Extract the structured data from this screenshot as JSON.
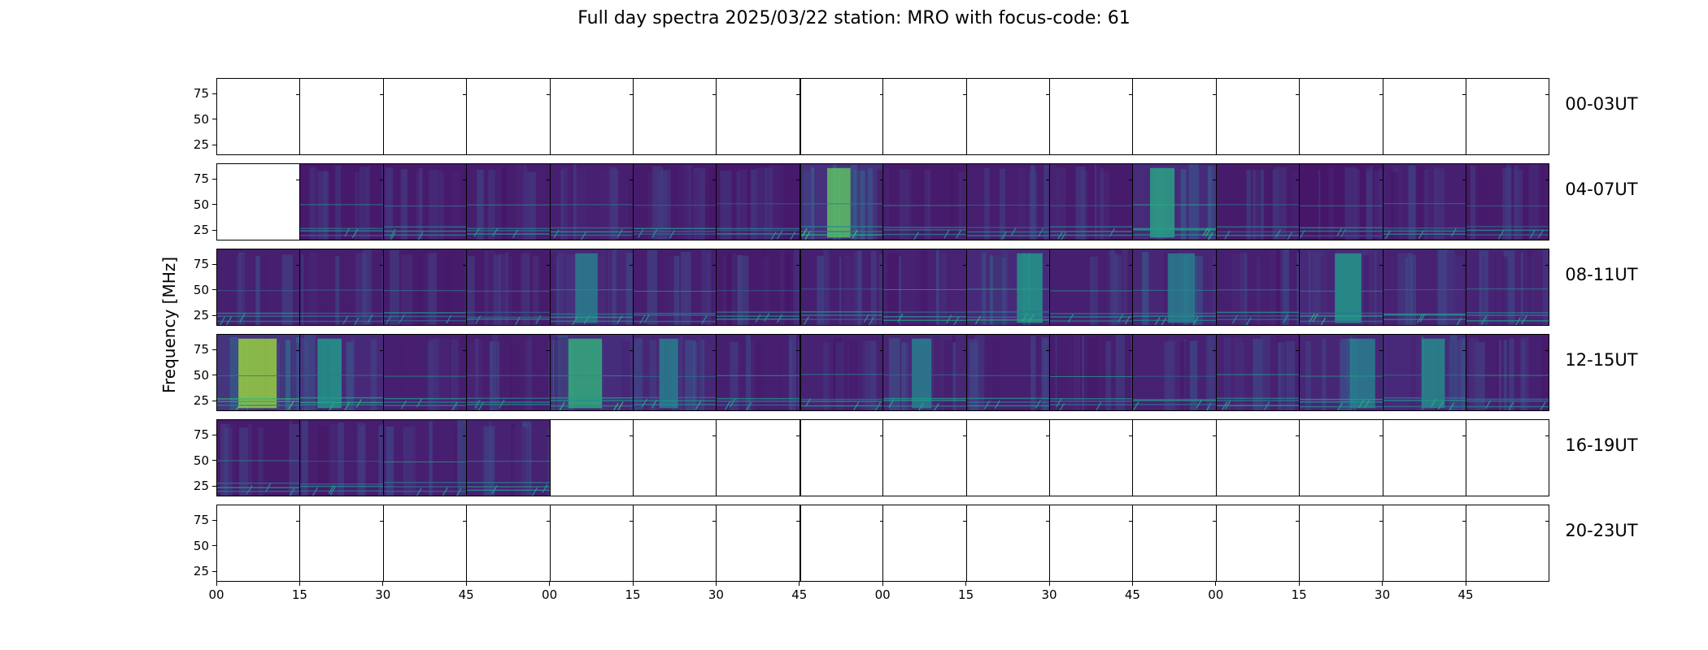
{
  "chart_data": {
    "type": "heatmap",
    "title": "Full day spectra 2025/03/22 station: MRO with focus-code: 61",
    "ylabel": "Frequency [MHz]",
    "xlabel": "",
    "ytick_labels": [
      "75",
      "50",
      "25"
    ],
    "yticks": [
      75,
      50,
      25
    ],
    "ylim": [
      15,
      90
    ],
    "xtick_labels": [
      "00",
      "15",
      "30",
      "45",
      "00",
      "15",
      "30",
      "45",
      "00",
      "15",
      "30",
      "45",
      "00",
      "15",
      "30",
      "45"
    ],
    "colormap": "viridis",
    "rows": [
      {
        "label": "00-03UT",
        "filled": [
          false,
          false,
          false,
          false,
          false,
          false,
          false,
          false,
          false,
          false,
          false,
          false,
          false,
          false,
          false,
          false
        ],
        "bright": [
          0,
          0,
          0,
          0,
          0,
          0,
          0,
          0,
          0,
          0,
          0,
          0,
          0,
          0,
          0,
          0
        ]
      },
      {
        "label": "04-07UT",
        "filled": [
          false,
          true,
          true,
          true,
          true,
          true,
          true,
          true,
          true,
          true,
          true,
          true,
          true,
          true,
          true,
          true
        ],
        "bright": [
          0,
          0.15,
          0.2,
          0.25,
          0.3,
          0.2,
          0.15,
          0.75,
          0.2,
          0.25,
          0.2,
          0.6,
          0.2,
          0.1,
          0.3,
          0.2
        ]
      },
      {
        "label": "08-11UT",
        "filled": [
          true,
          true,
          true,
          true,
          true,
          true,
          true,
          true,
          true,
          true,
          true,
          true,
          true,
          true,
          true,
          true
        ],
        "bright": [
          0.3,
          0.25,
          0.2,
          0.2,
          0.45,
          0.25,
          0.2,
          0.3,
          0.35,
          0.55,
          0.3,
          0.45,
          0.3,
          0.55,
          0.35,
          0.4
        ]
      },
      {
        "label": "12-15UT",
        "filled": [
          true,
          true,
          true,
          true,
          true,
          true,
          true,
          true,
          true,
          true,
          true,
          true,
          true,
          true,
          true,
          true
        ],
        "bright": [
          0.85,
          0.55,
          0.3,
          0.25,
          0.65,
          0.45,
          0.3,
          0.35,
          0.45,
          0.3,
          0.25,
          0.35,
          0.35,
          0.45,
          0.5,
          0.3
        ]
      },
      {
        "label": "16-19UT",
        "filled": [
          true,
          true,
          true,
          true,
          false,
          false,
          false,
          false,
          false,
          false,
          false,
          false,
          false,
          false,
          false,
          false
        ],
        "bright": [
          0.2,
          0.25,
          0.3,
          0.35,
          0,
          0,
          0,
          0,
          0,
          0,
          0,
          0,
          0,
          0,
          0,
          0
        ]
      },
      {
        "label": "20-23UT",
        "filled": [
          false,
          false,
          false,
          false,
          false,
          false,
          false,
          false,
          false,
          false,
          false,
          false,
          false,
          false,
          false,
          false
        ],
        "bright": [
          0,
          0,
          0,
          0,
          0,
          0,
          0,
          0,
          0,
          0,
          0,
          0,
          0,
          0,
          0,
          0
        ]
      }
    ]
  }
}
